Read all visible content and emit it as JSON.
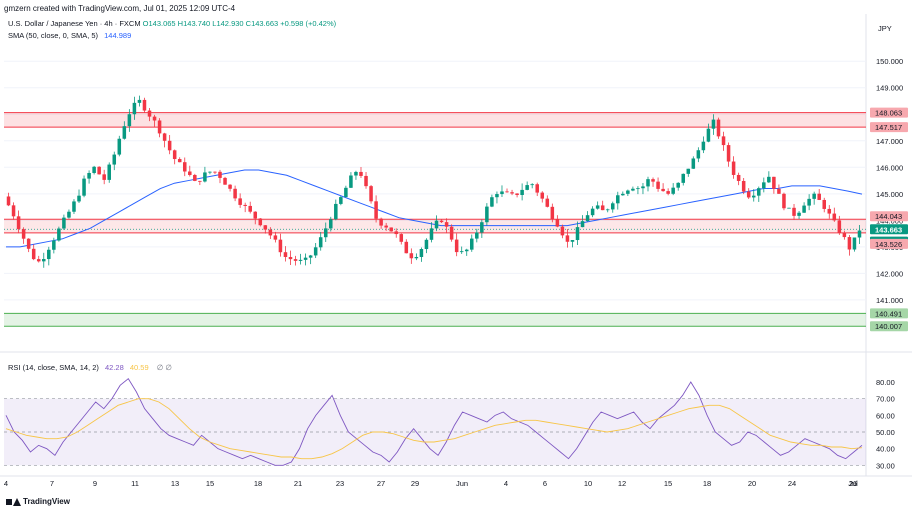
{
  "header": {
    "title": "gmzern created with TradingView.com, Jul 01, 2025 12:09 UTC-4"
  },
  "legend": {
    "symbol": "U.S. Dollar / Japanese Yen · 4h · FXCM",
    "ohlc": "O143.065 H143.740 L142.930 C143.663 +0.598 (+0.42%)",
    "sma_label": "SMA (50, close, 0, SMA, 5)",
    "sma_value": "144.989",
    "rsi_label": "RSI (14, close, SMA, 14, 2)",
    "rsi_value": "42.28",
    "rsi_ma_value": "40.59",
    "rsi_extra": "∅ ∅"
  },
  "currency": "JPY",
  "footer": {
    "brand": "TradingView"
  },
  "colors": {
    "up": "#089981",
    "down": "#f23645",
    "sma": "#2962ff",
    "rsi": "#7e57c2",
    "rsi_ma": "#f7c548",
    "resistance": "#f23645",
    "support": "#4caf50"
  },
  "chart_data": {
    "type": "candlestick",
    "ylim": [
      139.3,
      150.8
    ],
    "price_ticks": [
      "150.000",
      "149.000",
      "148.000",
      "147.000",
      "146.000",
      "145.000",
      "144.000",
      "143.000",
      "142.000",
      "141.000"
    ],
    "time_ticks": [
      "4",
      "7",
      "9",
      "11",
      "13",
      "15",
      "18",
      "21",
      "23",
      "27",
      "29",
      "Jun",
      "4",
      "6",
      "10",
      "12",
      "15",
      "18",
      "20",
      "24",
      "26",
      "Jul"
    ],
    "resistance_zone": {
      "upper": 148.063,
      "lower": 147.517
    },
    "pivot_zone": {
      "upper": 144.043,
      "lower": 143.526
    },
    "support_zone": {
      "upper": 140.491,
      "lower": 140.007
    },
    "price_labels": [
      {
        "text": "148.063",
        "value": 148.063,
        "kind": "resistance"
      },
      {
        "text": "147.517",
        "value": 147.517,
        "kind": "resistance"
      },
      {
        "text": "144.043",
        "value": 144.043,
        "kind": "resistance"
      },
      {
        "text": "143.663",
        "value": 143.663,
        "kind": "last"
      },
      {
        "text": "50:35",
        "value": 143.35,
        "kind": "countdown"
      },
      {
        "text": "143.526",
        "value": 143.526,
        "kind": "resistance"
      },
      {
        "text": "140.491",
        "value": 140.491,
        "kind": "support"
      },
      {
        "text": "140.007",
        "value": 140.007,
        "kind": "support"
      }
    ],
    "last_price": 143.663,
    "price_path": [
      144.9,
      144.3,
      143.5,
      142.7,
      142.4,
      143.0,
      143.6,
      144.2,
      144.8,
      145.6,
      146.0,
      145.5,
      146.3,
      147.4,
      148.2,
      148.5,
      148.0,
      147.5,
      146.8,
      146.2,
      145.9,
      145.4,
      145.7,
      145.9,
      145.6,
      145.1,
      144.7,
      144.3,
      144.0,
      143.6,
      143.1,
      142.6,
      142.5,
      142.4,
      142.8,
      143.4,
      144.2,
      144.8,
      145.5,
      146.0,
      145.0,
      144.0,
      143.8,
      143.5,
      142.9,
      142.6,
      143.0,
      143.6,
      144.1,
      143.5,
      142.7,
      142.9,
      143.6,
      144.4,
      145.1,
      145.0,
      144.9,
      145.2,
      145.4,
      144.9,
      144.3,
      143.8,
      143.1,
      143.6,
      144.2,
      144.5,
      144.3,
      144.8,
      145.1,
      145.3,
      145.2,
      145.6,
      145.2,
      145.0,
      145.3,
      145.9,
      146.4,
      147.2,
      147.7,
      146.8,
      145.9,
      145.3,
      144.9,
      145.3,
      145.7,
      145.0,
      144.4,
      144.2,
      144.7,
      144.9,
      144.6,
      144.0,
      143.5,
      142.9,
      143.663
    ],
    "sma_path": [
      143.0,
      143.0,
      143.1,
      143.2,
      143.3,
      143.5,
      143.7,
      144.0,
      144.3,
      144.6,
      144.9,
      145.2,
      145.4,
      145.5,
      145.6,
      145.7,
      145.8,
      145.9,
      145.9,
      145.8,
      145.7,
      145.5,
      145.3,
      145.1,
      144.9,
      144.7,
      144.5,
      144.3,
      144.1,
      144.0,
      143.9,
      143.8,
      143.8,
      143.8,
      143.8,
      143.8,
      143.8,
      143.8,
      143.8,
      143.8,
      143.8,
      143.9,
      144.0,
      144.1,
      144.2,
      144.3,
      144.4,
      144.5,
      144.6,
      144.7,
      144.8,
      144.9,
      145.0,
      145.1,
      145.2,
      145.2,
      145.3,
      145.3,
      145.3,
      145.2,
      145.1,
      144.989
    ],
    "rsi_ticks": [
      "80.00",
      "70.00",
      "60.00",
      "50.00",
      "40.00",
      "30.00"
    ],
    "rsi_range": [
      26,
      86
    ],
    "rsi_band": [
      30,
      70
    ],
    "rsi_path": [
      60,
      50,
      45,
      38,
      42,
      40,
      36,
      44,
      50,
      56,
      62,
      68,
      64,
      70,
      78,
      82,
      74,
      64,
      58,
      52,
      48,
      46,
      44,
      42,
      48,
      44,
      40,
      38,
      36,
      34,
      36,
      34,
      32,
      30,
      30,
      32,
      40,
      52,
      60,
      66,
      72,
      60,
      50,
      46,
      42,
      38,
      36,
      32,
      38,
      46,
      52,
      46,
      40,
      36,
      44,
      54,
      62,
      60,
      58,
      56,
      60,
      62,
      58,
      56,
      54,
      50,
      46,
      42,
      38,
      34,
      40,
      48,
      56,
      62,
      60,
      58,
      60,
      62,
      56,
      52,
      58,
      62,
      66,
      72,
      80,
      72,
      60,
      50,
      46,
      42,
      44,
      50,
      48,
      44,
      40,
      36,
      38,
      42,
      46,
      44,
      42,
      40,
      36,
      34,
      38,
      42
    ],
    "rsi_ma_path": [
      52,
      50,
      48,
      47,
      46,
      46,
      47,
      50,
      54,
      58,
      62,
      66,
      68,
      70,
      70,
      68,
      64,
      58,
      52,
      47,
      44,
      42,
      40,
      39,
      38,
      37,
      36,
      35,
      35,
      34,
      34,
      35,
      37,
      40,
      44,
      48,
      50,
      50,
      49,
      47,
      45,
      44,
      44,
      45,
      46,
      48,
      50,
      52,
      54,
      55,
      56,
      57,
      57,
      56,
      55,
      54,
      53,
      52,
      51,
      50,
      51,
      52,
      54,
      56,
      58,
      60,
      62,
      64,
      65,
      66,
      66,
      64,
      60,
      56,
      52,
      48,
      46,
      44,
      43,
      42,
      42,
      41,
      41,
      40,
      40.59
    ]
  }
}
